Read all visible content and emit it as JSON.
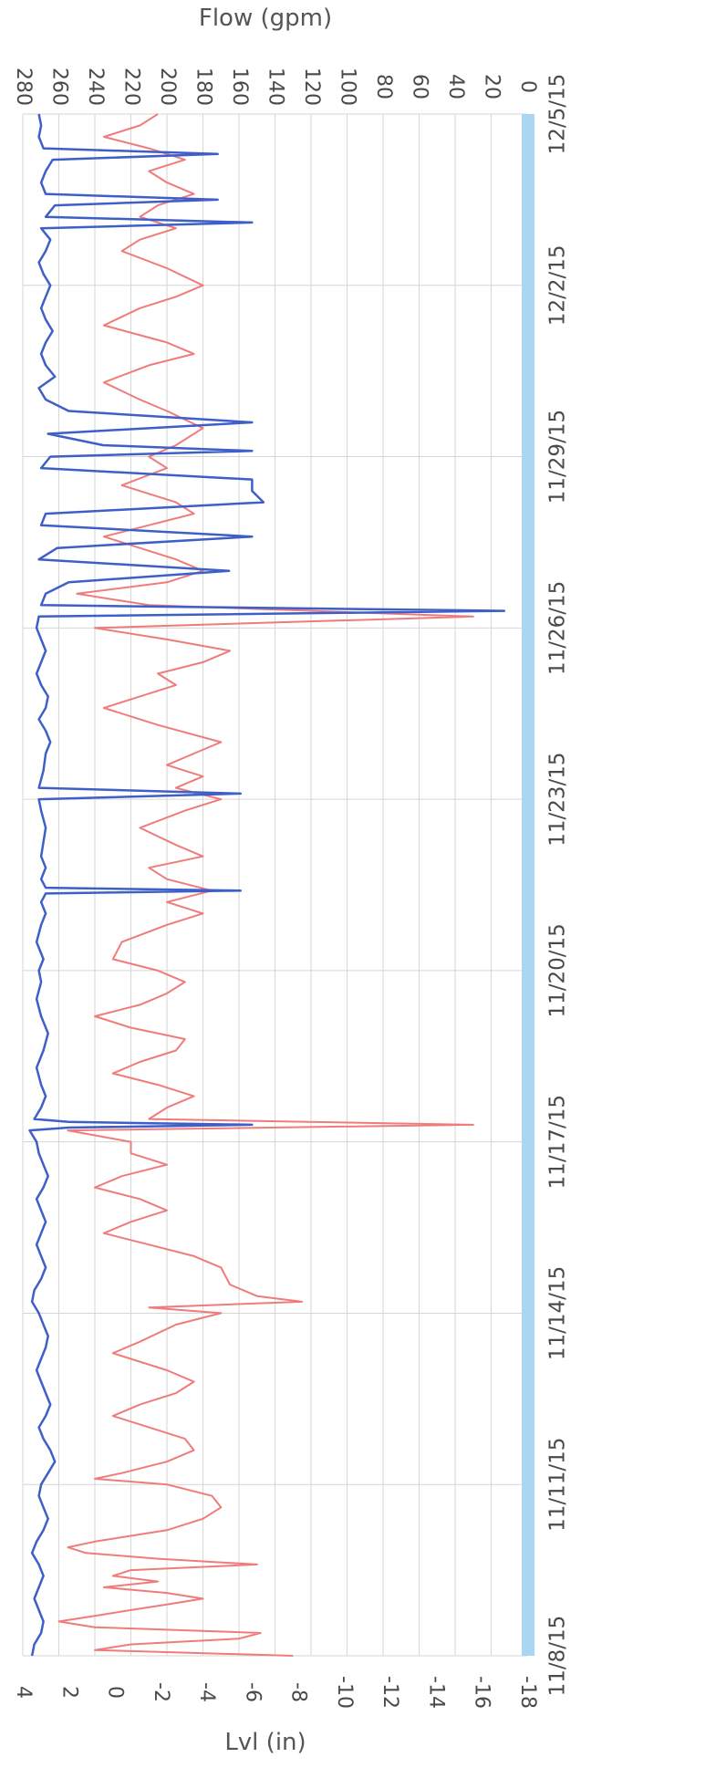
{
  "chart_data": {
    "type": "line",
    "orientation": "rotated-90",
    "flow_axis_title": "Flow (gpm)",
    "level_axis_title": "Lvl (in)",
    "flow_ticks": [
      "280",
      "260",
      "240",
      "220",
      "200",
      "180",
      "160",
      "140",
      "120",
      "100",
      "80",
      "60",
      "40",
      "20",
      "0"
    ],
    "level_ticks": [
      "4",
      "2",
      "0",
      "-2",
      "-4",
      "-6",
      "-8",
      "-10",
      "-12",
      "-14",
      "-16",
      "-18"
    ],
    "date_ticks": [
      "11/8/15",
      "11/11/15",
      "11/14/15",
      "11/17/15",
      "11/20/15",
      "11/23/15",
      "11/26/15",
      "11/29/15",
      "12/2/15",
      "12/5/15"
    ],
    "flow_range": [
      0,
      280
    ],
    "level_range": [
      -18,
      4
    ],
    "date_range": [
      "11/8/15",
      "12/5/15"
    ],
    "grid": true,
    "colors": {
      "flow": "#f07b7b",
      "level": "#3f5fc8",
      "band": "#a9d6f0",
      "grid": "#d6d6d6"
    },
    "series": [
      {
        "id": "flow",
        "unit": "gpm",
        "points": [
          [
            0.0,
            130
          ],
          [
            0.1,
            240
          ],
          [
            0.2,
            220
          ],
          [
            0.3,
            160
          ],
          [
            0.4,
            148
          ],
          [
            0.5,
            240
          ],
          [
            0.6,
            260
          ],
          [
            0.7,
            240
          ],
          [
            0.8,
            220
          ],
          [
            0.9,
            200
          ],
          [
            1.0,
            180
          ],
          [
            1.1,
            200
          ],
          [
            1.2,
            235
          ],
          [
            1.3,
            205
          ],
          [
            1.4,
            230
          ],
          [
            1.5,
            220
          ],
          [
            1.6,
            150
          ],
          [
            1.7,
            205
          ],
          [
            1.8,
            245
          ],
          [
            1.9,
            255
          ],
          [
            2.0,
            240
          ],
          [
            2.2,
            200
          ],
          [
            2.4,
            180
          ],
          [
            2.6,
            170
          ],
          [
            2.8,
            175
          ],
          [
            3.0,
            200
          ],
          [
            3.1,
            240
          ],
          [
            3.2,
            225
          ],
          [
            3.4,
            200
          ],
          [
            3.6,
            185
          ],
          [
            3.8,
            190
          ],
          [
            4.0,
            210
          ],
          [
            4.2,
            230
          ],
          [
            4.4,
            215
          ],
          [
            4.6,
            195
          ],
          [
            4.8,
            185
          ],
          [
            5.0,
            200
          ],
          [
            5.3,
            230
          ],
          [
            5.5,
            215
          ],
          [
            5.8,
            195
          ],
          [
            6.0,
            170
          ],
          [
            6.1,
            210
          ],
          [
            6.2,
            125
          ],
          [
            6.3,
            150
          ],
          [
            6.5,
            165
          ],
          [
            6.8,
            170
          ],
          [
            7.0,
            185
          ],
          [
            7.2,
            210
          ],
          [
            7.4,
            235
          ],
          [
            7.6,
            220
          ],
          [
            7.8,
            200
          ],
          [
            8.0,
            215
          ],
          [
            8.2,
            240
          ],
          [
            8.4,
            225
          ],
          [
            8.6,
            200
          ],
          [
            8.8,
            220
          ],
          [
            9.0,
            220
          ],
          [
            9.2,
            255
          ],
          [
            9.3,
            30
          ],
          [
            9.4,
            210
          ],
          [
            9.6,
            200
          ],
          [
            9.8,
            185
          ],
          [
            10.0,
            205
          ],
          [
            10.2,
            230
          ],
          [
            10.4,
            215
          ],
          [
            10.6,
            195
          ],
          [
            10.8,
            190
          ],
          [
            11.0,
            220
          ],
          [
            11.2,
            240
          ],
          [
            11.4,
            215
          ],
          [
            11.6,
            200
          ],
          [
            11.8,
            190
          ],
          [
            12.0,
            205
          ],
          [
            12.2,
            230
          ],
          [
            12.5,
            225
          ],
          [
            12.8,
            200
          ],
          [
            13.0,
            180
          ],
          [
            13.2,
            200
          ],
          [
            13.4,
            175
          ],
          [
            13.6,
            200
          ],
          [
            13.8,
            210
          ],
          [
            14.0,
            180
          ],
          [
            14.2,
            195
          ],
          [
            14.5,
            215
          ],
          [
            14.8,
            190
          ],
          [
            15.0,
            170
          ],
          [
            15.2,
            195
          ],
          [
            15.4,
            180
          ],
          [
            15.6,
            200
          ],
          [
            15.8,
            185
          ],
          [
            16.0,
            170
          ],
          [
            16.3,
            205
          ],
          [
            16.6,
            235
          ],
          [
            16.8,
            215
          ],
          [
            17.0,
            195
          ],
          [
            17.2,
            205
          ],
          [
            17.4,
            180
          ],
          [
            17.6,
            165
          ],
          [
            17.8,
            200
          ],
          [
            18.0,
            240
          ],
          [
            18.2,
            30
          ],
          [
            18.4,
            210
          ],
          [
            18.6,
            250
          ],
          [
            18.8,
            200
          ],
          [
            19.0,
            180
          ],
          [
            19.2,
            195
          ],
          [
            19.4,
            215
          ],
          [
            19.6,
            235
          ],
          [
            19.8,
            210
          ],
          [
            20.0,
            185
          ],
          [
            20.2,
            195
          ],
          [
            20.5,
            225
          ],
          [
            20.8,
            200
          ],
          [
            21.0,
            210
          ],
          [
            21.2,
            195
          ],
          [
            21.5,
            180
          ],
          [
            21.8,
            200
          ],
          [
            22.0,
            215
          ],
          [
            22.3,
            235
          ],
          [
            22.6,
            210
          ],
          [
            22.8,
            185
          ],
          [
            23.0,
            200
          ],
          [
            23.3,
            235
          ],
          [
            23.6,
            215
          ],
          [
            23.8,
            195
          ],
          [
            24.0,
            180
          ],
          [
            24.3,
            200
          ],
          [
            24.6,
            225
          ],
          [
            24.8,
            215
          ],
          [
            25.0,
            195
          ],
          [
            25.2,
            215
          ],
          [
            25.4,
            205
          ],
          [
            25.6,
            185
          ],
          [
            25.8,
            200
          ],
          [
            26.0,
            210
          ],
          [
            26.2,
            190
          ],
          [
            26.4,
            210
          ],
          [
            26.6,
            235
          ],
          [
            26.8,
            215
          ],
          [
            27.0,
            205
          ]
        ]
      },
      {
        "id": "level",
        "unit": "in",
        "points": [
          [
            0.0,
            3.6
          ],
          [
            0.2,
            3.5
          ],
          [
            0.4,
            3.2
          ],
          [
            0.6,
            3.1
          ],
          [
            0.8,
            3.3
          ],
          [
            1.0,
            3.5
          ],
          [
            1.2,
            3.3
          ],
          [
            1.4,
            3.1
          ],
          [
            1.6,
            3.3
          ],
          [
            1.8,
            3.6
          ],
          [
            2.0,
            3.4
          ],
          [
            2.2,
            3.1
          ],
          [
            2.4,
            2.9
          ],
          [
            2.6,
            3.1
          ],
          [
            2.8,
            3.3
          ],
          [
            3.0,
            3.2
          ],
          [
            3.2,
            2.9
          ],
          [
            3.4,
            2.6
          ],
          [
            3.6,
            2.8
          ],
          [
            3.8,
            3.1
          ],
          [
            4.0,
            3.3
          ],
          [
            4.2,
            3.0
          ],
          [
            4.4,
            2.8
          ],
          [
            4.6,
            3.0
          ],
          [
            4.8,
            3.2
          ],
          [
            5.0,
            3.4
          ],
          [
            5.2,
            3.2
          ],
          [
            5.4,
            3.0
          ],
          [
            5.6,
            2.9
          ],
          [
            5.8,
            3.1
          ],
          [
            6.0,
            3.3
          ],
          [
            6.2,
            3.6
          ],
          [
            6.4,
            3.5
          ],
          [
            6.6,
            3.2
          ],
          [
            6.8,
            3.0
          ],
          [
            7.0,
            3.2
          ],
          [
            7.2,
            3.4
          ],
          [
            7.4,
            3.2
          ],
          [
            7.6,
            3.0
          ],
          [
            7.8,
            3.2
          ],
          [
            8.0,
            3.4
          ],
          [
            8.2,
            3.1
          ],
          [
            8.4,
            2.9
          ],
          [
            8.6,
            3.1
          ],
          [
            8.8,
            3.3
          ],
          [
            9.0,
            3.4
          ],
          [
            9.2,
            3.7
          ],
          [
            9.25,
            2.0
          ],
          [
            9.3,
            -6.0
          ],
          [
            9.35,
            2.0
          ],
          [
            9.4,
            3.5
          ],
          [
            9.6,
            3.2
          ],
          [
            9.8,
            3.0
          ],
          [
            10.0,
            3.2
          ],
          [
            10.3,
            3.4
          ],
          [
            10.6,
            3.1
          ],
          [
            10.9,
            2.9
          ],
          [
            11.2,
            3.2
          ],
          [
            11.5,
            3.4
          ],
          [
            11.8,
            3.2
          ],
          [
            12.0,
            3.3
          ],
          [
            12.2,
            3.1
          ],
          [
            12.5,
            3.4
          ],
          [
            12.8,
            3.2
          ],
          [
            13.0,
            3.0
          ],
          [
            13.2,
            3.2
          ],
          [
            13.35,
            3.0
          ],
          [
            13.4,
            -5.5
          ],
          [
            13.45,
            3.0
          ],
          [
            13.6,
            3.2
          ],
          [
            13.8,
            3.0
          ],
          [
            14.0,
            3.2
          ],
          [
            14.5,
            3.0
          ],
          [
            14.8,
            3.2
          ],
          [
            15.0,
            3.3
          ],
          [
            15.1,
            -5.5
          ],
          [
            15.2,
            3.3
          ],
          [
            15.5,
            3.1
          ],
          [
            15.8,
            3.0
          ],
          [
            16.0,
            2.8
          ],
          [
            16.2,
            3.0
          ],
          [
            16.4,
            3.3
          ],
          [
            16.6,
            3.0
          ],
          [
            16.8,
            2.9
          ],
          [
            17.0,
            3.2
          ],
          [
            17.2,
            3.4
          ],
          [
            17.4,
            3.2
          ],
          [
            17.6,
            3.0
          ],
          [
            17.8,
            3.2
          ],
          [
            18.0,
            3.4
          ],
          [
            18.2,
            3.3
          ],
          [
            18.3,
            -17.0
          ],
          [
            18.4,
            3.2
          ],
          [
            18.6,
            3.0
          ],
          [
            18.8,
            2.0
          ],
          [
            19.0,
            -5.0
          ],
          [
            19.2,
            3.3
          ],
          [
            19.4,
            2.5
          ],
          [
            19.6,
            -6.0
          ],
          [
            19.8,
            3.2
          ],
          [
            20.0,
            3.0
          ],
          [
            20.2,
            -6.5
          ],
          [
            20.4,
            -6.0
          ],
          [
            20.6,
            -6.0
          ],
          [
            20.8,
            3.2
          ],
          [
            21.0,
            2.8
          ],
          [
            21.1,
            -6.0
          ],
          [
            21.2,
            0.5
          ],
          [
            21.4,
            2.9
          ],
          [
            21.6,
            -6.0
          ],
          [
            21.8,
            2.0
          ],
          [
            22.0,
            3.0
          ],
          [
            22.2,
            3.3
          ],
          [
            22.4,
            2.6
          ],
          [
            22.6,
            3.0
          ],
          [
            22.8,
            3.2
          ],
          [
            23.0,
            3.0
          ],
          [
            23.2,
            2.7
          ],
          [
            23.4,
            3.0
          ],
          [
            23.6,
            3.2
          ],
          [
            23.8,
            3.0
          ],
          [
            24.0,
            2.8
          ],
          [
            24.2,
            3.1
          ],
          [
            24.4,
            3.3
          ],
          [
            24.6,
            3.0
          ],
          [
            24.8,
            2.8
          ],
          [
            25.0,
            3.2
          ],
          [
            25.1,
            -6.0
          ],
          [
            25.2,
            3.0
          ],
          [
            25.4,
            2.6
          ],
          [
            25.5,
            -4.5
          ],
          [
            25.6,
            3.0
          ],
          [
            25.8,
            3.2
          ],
          [
            26.0,
            3.0
          ],
          [
            26.2,
            2.7
          ],
          [
            26.3,
            -4.5
          ],
          [
            26.4,
            3.1
          ],
          [
            26.6,
            3.3
          ],
          [
            26.8,
            3.2
          ],
          [
            27.0,
            3.3
          ]
        ]
      }
    ]
  }
}
